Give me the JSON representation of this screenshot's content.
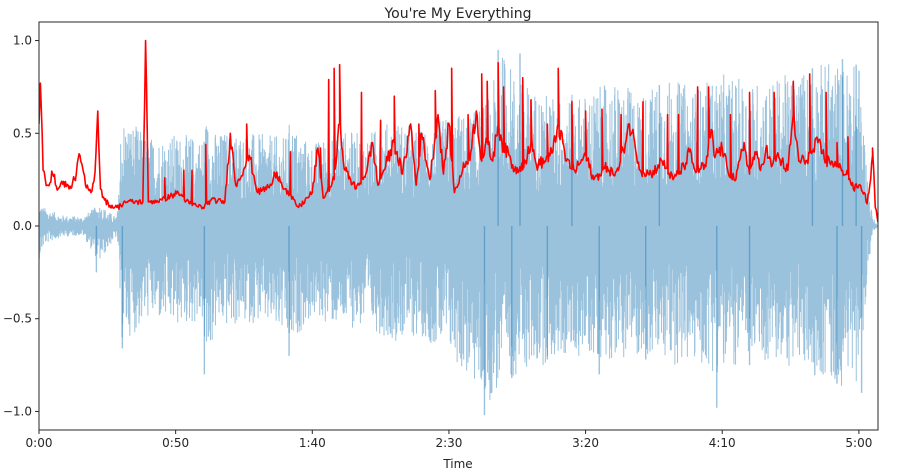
{
  "chart_data": {
    "type": "line",
    "title": "You're My Everything",
    "xlabel": "Time",
    "ylabel": "",
    "xlim": [
      0,
      307
    ],
    "ylim": [
      -1.1,
      1.1
    ],
    "x_ticks": [
      {
        "value": 0,
        "label": "0:00"
      },
      {
        "value": 50,
        "label": "0:50"
      },
      {
        "value": 100,
        "label": "1:40"
      },
      {
        "value": 150,
        "label": "2:30"
      },
      {
        "value": 200,
        "label": "3:20"
      },
      {
        "value": 250,
        "label": "4:10"
      },
      {
        "value": 300,
        "label": "5:00"
      }
    ],
    "y_ticks": [
      {
        "value": 1.0,
        "label": "1.0"
      },
      {
        "value": 0.5,
        "label": "0.5"
      },
      {
        "value": 0.0,
        "label": "0.0"
      },
      {
        "value": -0.5,
        "label": "−0.5"
      },
      {
        "value": -1.0,
        "label": "−1.0"
      }
    ],
    "grid": false,
    "series": [
      {
        "kind": "waveform",
        "color": "#1f77b4",
        "opacity": 0.45,
        "envelope": {
          "t": [
            0,
            2,
            8,
            16,
            22,
            28,
            29,
            30,
            35,
            40,
            50,
            60,
            60.5,
            65,
            70,
            80,
            90,
            92,
            95,
            100,
            110,
            120,
            130,
            140,
            150,
            160,
            165,
            170,
            175,
            180,
            190,
            200,
            210,
            220,
            230,
            240,
            250,
            260,
            270,
            280,
            290,
            293,
            296,
            300,
            303,
            305,
            307
          ],
          "top": [
            0.12,
            0.1,
            0.06,
            0.05,
            0.12,
            0.05,
            0.1,
            0.6,
            0.55,
            0.48,
            0.5,
            0.48,
            0.6,
            0.5,
            0.52,
            0.5,
            0.48,
            0.58,
            0.5,
            0.45,
            0.52,
            0.5,
            0.58,
            0.52,
            0.6,
            0.62,
            0.72,
            0.95,
            0.8,
            0.75,
            0.7,
            0.72,
            0.78,
            0.72,
            0.8,
            0.75,
            0.82,
            0.78,
            0.8,
            0.85,
            0.9,
            0.88,
            0.85,
            0.9,
            0.3,
            0.05,
            0.0
          ],
          "bot": [
            -0.18,
            -0.1,
            -0.06,
            -0.05,
            -0.2,
            -0.06,
            -0.12,
            -0.62,
            -0.58,
            -0.5,
            -0.55,
            -0.52,
            -0.8,
            -0.55,
            -0.55,
            -0.52,
            -0.6,
            -0.7,
            -0.58,
            -0.5,
            -0.55,
            -0.55,
            -0.62,
            -0.6,
            -0.7,
            -0.88,
            -0.95,
            -0.85,
            -0.8,
            -0.78,
            -0.72,
            -0.7,
            -0.72,
            -0.7,
            -0.75,
            -0.75,
            -0.8,
            -0.72,
            -0.75,
            -0.78,
            -0.85,
            -0.88,
            -0.8,
            -0.85,
            -0.3,
            -0.05,
            0.0
          ]
        },
        "spikes": [
          {
            "t": 21,
            "v": -0.25
          },
          {
            "t": 30.5,
            "v": -0.66
          },
          {
            "t": 60.5,
            "v": -0.8
          },
          {
            "t": 91.5,
            "v": -0.7
          },
          {
            "t": 163,
            "v": -1.02
          },
          {
            "t": 173,
            "v": -0.82
          },
          {
            "t": 186,
            "v": -0.72
          },
          {
            "t": 205,
            "v": -0.8
          },
          {
            "t": 222,
            "v": -0.72
          },
          {
            "t": 248,
            "v": -0.98
          },
          {
            "t": 260,
            "v": -0.75
          },
          {
            "t": 292,
            "v": -0.85
          },
          {
            "t": 301,
            "v": -0.9
          },
          {
            "t": 168,
            "v": 0.95
          },
          {
            "t": 176,
            "v": 0.93
          },
          {
            "t": 294,
            "v": 0.9
          },
          {
            "t": 299,
            "v": 0.87
          },
          {
            "t": 195,
            "v": 0.68
          },
          {
            "t": 227,
            "v": 0.76
          },
          {
            "t": 283,
            "v": 0.85
          }
        ]
      },
      {
        "kind": "rms",
        "color": "#ff0000",
        "points": [
          [
            0,
            0.55
          ],
          [
            0.5,
            0.77
          ],
          [
            1.5,
            0.3
          ],
          [
            3,
            0.22
          ],
          [
            5,
            0.28
          ],
          [
            7,
            0.2
          ],
          [
            9,
            0.24
          ],
          [
            11,
            0.2
          ],
          [
            13,
            0.25
          ],
          [
            15,
            0.38
          ],
          [
            17,
            0.22
          ],
          [
            19,
            0.18
          ],
          [
            20.5,
            0.29
          ],
          [
            21.5,
            0.62
          ],
          [
            22.5,
            0.2
          ],
          [
            24,
            0.14
          ],
          [
            26,
            0.11
          ],
          [
            28.5,
            0.1
          ],
          [
            30,
            0.11
          ],
          [
            31,
            0.13
          ],
          [
            38,
            0.13
          ],
          [
            39,
            1.0
          ],
          [
            40,
            0.13
          ],
          [
            45,
            0.14
          ],
          [
            48,
            0.16
          ],
          [
            51,
            0.18
          ],
          [
            55,
            0.12
          ],
          [
            60,
            0.1
          ],
          [
            63,
            0.14
          ],
          [
            68,
            0.13
          ],
          [
            70,
            0.5
          ],
          [
            72,
            0.22
          ],
          [
            77,
            0.38
          ],
          [
            80,
            0.18
          ],
          [
            85,
            0.22
          ],
          [
            87,
            0.29
          ],
          [
            90,
            0.2
          ],
          [
            95,
            0.1
          ],
          [
            100,
            0.18
          ],
          [
            102,
            0.42
          ],
          [
            104,
            0.15
          ],
          [
            108,
            0.25
          ],
          [
            110,
            0.55
          ],
          [
            112,
            0.3
          ],
          [
            114,
            0.25
          ],
          [
            116,
            0.2
          ],
          [
            120,
            0.3
          ],
          [
            122,
            0.45
          ],
          [
            124,
            0.22
          ],
          [
            130,
            0.45
          ],
          [
            133,
            0.28
          ],
          [
            136,
            0.55
          ],
          [
            138,
            0.22
          ],
          [
            140,
            0.5
          ],
          [
            143,
            0.25
          ],
          [
            146,
            0.6
          ],
          [
            148,
            0.28
          ],
          [
            150,
            0.55
          ],
          [
            152,
            0.18
          ],
          [
            155,
            0.3
          ],
          [
            158,
            0.4
          ],
          [
            160,
            0.62
          ],
          [
            162,
            0.35
          ],
          [
            164,
            0.45
          ],
          [
            166,
            0.35
          ],
          [
            168,
            0.55
          ],
          [
            170,
            0.42
          ],
          [
            172,
            0.38
          ],
          [
            174,
            0.3
          ],
          [
            176,
            0.32
          ],
          [
            178,
            0.35
          ],
          [
            180,
            0.45
          ],
          [
            182,
            0.33
          ],
          [
            185,
            0.35
          ],
          [
            188,
            0.4
          ],
          [
            190,
            0.55
          ],
          [
            193,
            0.35
          ],
          [
            196,
            0.3
          ],
          [
            200,
            0.38
          ],
          [
            203,
            0.25
          ],
          [
            205,
            0.28
          ],
          [
            208,
            0.32
          ],
          [
            210,
            0.28
          ],
          [
            212,
            0.3
          ],
          [
            216,
            0.55
          ],
          [
            218,
            0.45
          ],
          [
            220,
            0.3
          ],
          [
            224,
            0.28
          ],
          [
            228,
            0.35
          ],
          [
            232,
            0.25
          ],
          [
            236,
            0.32
          ],
          [
            238,
            0.4
          ],
          [
            240,
            0.3
          ],
          [
            244,
            0.32
          ],
          [
            246,
            0.52
          ],
          [
            247,
            0.38
          ],
          [
            250,
            0.42
          ],
          [
            252,
            0.3
          ],
          [
            255,
            0.25
          ],
          [
            258,
            0.45
          ],
          [
            260,
            0.28
          ],
          [
            262,
            0.4
          ],
          [
            264,
            0.3
          ],
          [
            266,
            0.42
          ],
          [
            268,
            0.32
          ],
          [
            270,
            0.38
          ],
          [
            274,
            0.3
          ],
          [
            276,
            0.6
          ],
          [
            278,
            0.35
          ],
          [
            280,
            0.35
          ],
          [
            283,
            0.4
          ],
          [
            285,
            0.45
          ],
          [
            288,
            0.35
          ],
          [
            290,
            0.35
          ],
          [
            292,
            0.32
          ],
          [
            294,
            0.3
          ],
          [
            296,
            0.28
          ],
          [
            298,
            0.2
          ],
          [
            300,
            0.22
          ],
          [
            302,
            0.18
          ],
          [
            303,
            0.12
          ],
          [
            304,
            0.22
          ],
          [
            305,
            0.38
          ],
          [
            305.5,
            0.28
          ],
          [
            306,
            0.1
          ],
          [
            307,
            0.02
          ]
        ],
        "peaks": [
          {
            "t": 0.5,
            "v": 0.77
          },
          {
            "t": 21.5,
            "v": 0.62
          },
          {
            "t": 39,
            "v": 1.0
          },
          {
            "t": 46,
            "v": 0.26
          },
          {
            "t": 53,
            "v": 0.3
          },
          {
            "t": 56,
            "v": 0.3
          },
          {
            "t": 61,
            "v": 0.44
          },
          {
            "t": 70,
            "v": 0.5
          },
          {
            "t": 76,
            "v": 0.55
          },
          {
            "t": 86,
            "v": 0.29
          },
          {
            "t": 92,
            "v": 0.4
          },
          {
            "t": 103,
            "v": 0.42
          },
          {
            "t": 106,
            "v": 0.79
          },
          {
            "t": 108,
            "v": 0.85
          },
          {
            "t": 110,
            "v": 0.87
          },
          {
            "t": 118,
            "v": 0.72
          },
          {
            "t": 125,
            "v": 0.57
          },
          {
            "t": 130,
            "v": 0.7
          },
          {
            "t": 139,
            "v": 0.55
          },
          {
            "t": 145,
            "v": 0.73
          },
          {
            "t": 151,
            "v": 0.85
          },
          {
            "t": 157,
            "v": 0.6
          },
          {
            "t": 160,
            "v": 0.62
          },
          {
            "t": 162,
            "v": 0.82
          },
          {
            "t": 164,
            "v": 0.78
          },
          {
            "t": 168,
            "v": 0.88
          },
          {
            "t": 170,
            "v": 0.75
          },
          {
            "t": 177,
            "v": 0.8
          },
          {
            "t": 180,
            "v": 0.68
          },
          {
            "t": 186,
            "v": 0.55
          },
          {
            "t": 190,
            "v": 0.85
          },
          {
            "t": 195,
            "v": 0.67
          },
          {
            "t": 200,
            "v": 0.62
          },
          {
            "t": 206,
            "v": 0.63
          },
          {
            "t": 213,
            "v": 0.6
          },
          {
            "t": 221,
            "v": 0.67
          },
          {
            "t": 230,
            "v": 0.6
          },
          {
            "t": 234,
            "v": 0.6
          },
          {
            "t": 241,
            "v": 0.75
          },
          {
            "t": 245,
            "v": 0.75
          },
          {
            "t": 253,
            "v": 0.6
          },
          {
            "t": 260,
            "v": 0.72
          },
          {
            "t": 269,
            "v": 0.72
          },
          {
            "t": 276,
            "v": 0.78
          },
          {
            "t": 282,
            "v": 0.82
          },
          {
            "t": 288,
            "v": 0.72
          },
          {
            "t": 292,
            "v": 0.45
          },
          {
            "t": 296,
            "v": 0.48
          },
          {
            "t": 305,
            "v": 0.42
          }
        ]
      }
    ]
  }
}
